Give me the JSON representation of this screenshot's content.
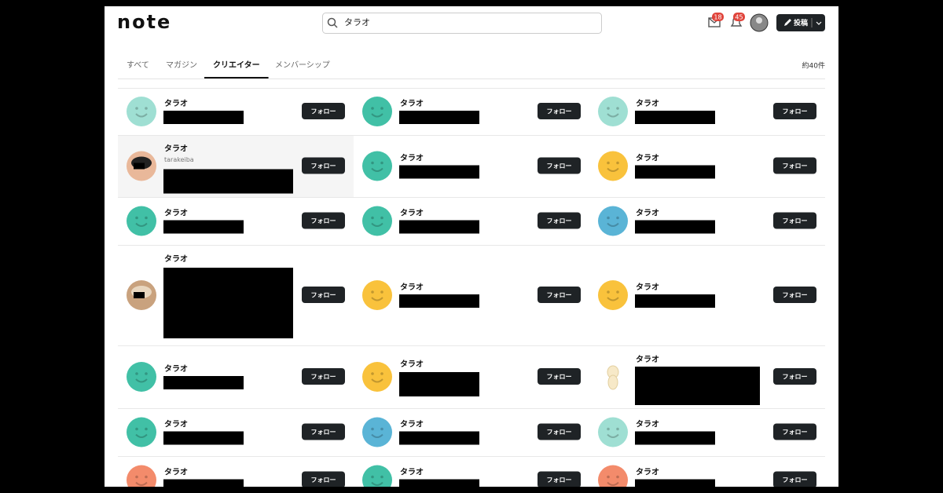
{
  "header": {
    "logo": "note",
    "search_query": "タラオ",
    "message_badge": "18",
    "notification_badge": "45",
    "post_button": "投稿"
  },
  "tabs": {
    "items": [
      "すべて",
      "マガジン",
      "クリエイター",
      "メンバーシップ"
    ],
    "active": 2,
    "result_count": "約40件"
  },
  "follow_label": "フォロー",
  "creators": [
    [
      {
        "name": "タラオ",
        "avatar": "#9fdfd3"
      },
      {
        "name": "タラオ",
        "avatar": "#41c0a6"
      },
      {
        "name": "タラオ",
        "avatar": "#9fdfd3"
      }
    ],
    [
      {
        "name": "タラオ",
        "id": "tarakeiba",
        "avatar": "photo"
      },
      {
        "name": "タラオ",
        "avatar": "#41c0a6"
      },
      {
        "name": "タラオ",
        "avatar": "#f9c23c"
      }
    ],
    [
      {
        "name": "タラオ",
        "avatar": "#41c0a6"
      },
      {
        "name": "タラオ",
        "avatar": "#41c0a6"
      },
      {
        "name": "タラオ",
        "avatar": "#5ab4d6"
      }
    ],
    [
      {
        "name": "タラオ",
        "avatar": "photo"
      },
      {
        "name": "タラオ",
        "avatar": "#f9c23c"
      },
      {
        "name": "タラオ",
        "avatar": "#f9c23c"
      }
    ],
    [
      {
        "name": "タラオ",
        "avatar": "#41c0a6"
      },
      {
        "name": "タラオ",
        "avatar": "#f9c23c"
      },
      {
        "name": "タラオ",
        "avatar": "illustration"
      }
    ],
    [
      {
        "name": "タラオ",
        "avatar": "#41c0a6"
      },
      {
        "name": "タラオ",
        "avatar": "#5ab4d6"
      },
      {
        "name": "タラオ",
        "avatar": "#9fdfd3"
      }
    ],
    [
      {
        "name": "タラオ",
        "avatar": "#f38b6b"
      },
      {
        "name": "タラオ",
        "avatar": "#41c0a6"
      },
      {
        "name": "タラオ",
        "avatar": "#f38b6b"
      }
    ]
  ]
}
